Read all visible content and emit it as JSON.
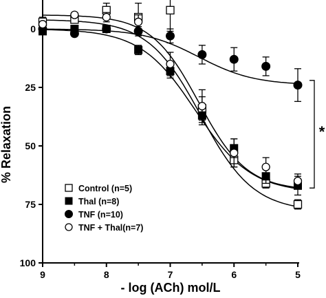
{
  "chart_data": {
    "type": "scatter",
    "xlabel": "- log (ACh) mol/L",
    "ylabel": "% Relaxation",
    "xlim": [
      9,
      5
    ],
    "ylim": [
      0,
      100
    ],
    "xticks": [
      9,
      8,
      7,
      6,
      5
    ],
    "yticks": [
      0,
      25,
      50,
      75,
      100
    ],
    "y_inverted": true,
    "grid": false,
    "legend_position": "bottom-left",
    "significance_marker": "*",
    "series": [
      {
        "name": "Control (n=5)",
        "marker": "open-square",
        "x": [
          9,
          8.5,
          8,
          7.5,
          7,
          6.5,
          6,
          5.5,
          5
        ],
        "y": [
          -3,
          -4,
          -8,
          -5,
          -8,
          34,
          56,
          66,
          75
        ],
        "err": [
          2,
          1,
          3,
          6,
          9,
          5,
          3,
          2,
          2
        ],
        "fit": {
          "top": -4,
          "bottom": 78,
          "ec50": 6.52,
          "hill": 1.05
        }
      },
      {
        "name": "Thal (n=8)",
        "marker": "filled-square",
        "x": [
          9,
          8.5,
          8,
          7.5,
          7,
          6.5,
          6,
          5.5,
          5
        ],
        "y": [
          1,
          0,
          0,
          9,
          18,
          37,
          51,
          63,
          67
        ],
        "err": [
          1,
          1,
          1,
          2,
          3,
          4,
          4,
          3,
          4
        ],
        "fit": {
          "top": 0,
          "bottom": 70,
          "ec50": 6.6,
          "hill": 1.0
        }
      },
      {
        "name": "TNF (n=10)",
        "marker": "filled-circle",
        "x": [
          9,
          8.5,
          8,
          7.5,
          7,
          6.5,
          6,
          5.5,
          5
        ],
        "y": [
          0,
          2,
          0,
          1,
          3,
          11,
          13,
          16,
          24
        ],
        "err": [
          1,
          1,
          1,
          2,
          3,
          4,
          5,
          4,
          7
        ],
        "fit": {
          "top": 0,
          "bottom": 24,
          "ec50": 6.55,
          "hill": 1.0
        }
      },
      {
        "name": "TNF + Thal(n=7)",
        "marker": "open-circle",
        "x": [
          9,
          8.5,
          8,
          7.5,
          7,
          6.5,
          6,
          5.5,
          5
        ],
        "y": [
          -2,
          -6,
          -5,
          -3,
          15,
          33,
          53,
          59,
          65
        ],
        "err": [
          1,
          1,
          2,
          3,
          5,
          7,
          6,
          4,
          3
        ],
        "fit": {
          "top": -6,
          "bottom": 69,
          "ec50": 6.55,
          "hill": 1.15
        }
      }
    ]
  }
}
